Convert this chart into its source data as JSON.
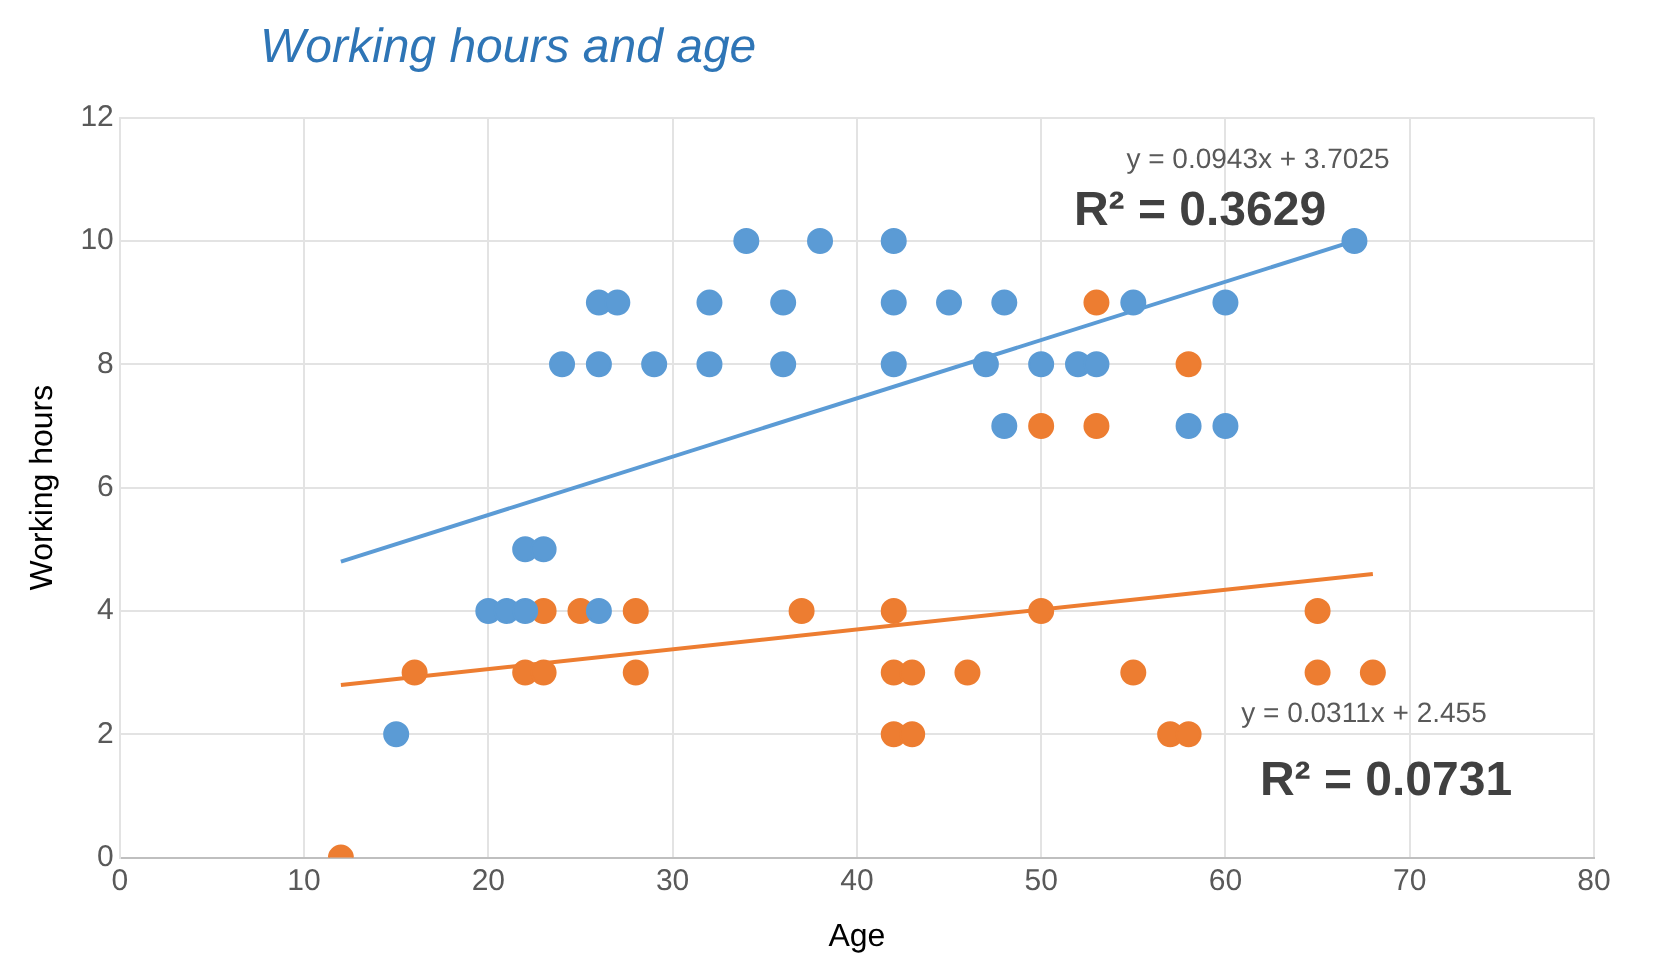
{
  "chart_data": {
    "type": "scatter",
    "title": "Working hours and age",
    "xlabel": "Age",
    "ylabel": "Working hours",
    "xlim": [
      0,
      80
    ],
    "xticks": [
      0,
      10,
      20,
      30,
      40,
      50,
      60,
      70,
      80
    ],
    "ylim": [
      0,
      12
    ],
    "yticks": [
      0,
      2,
      4,
      6,
      8,
      10,
      12
    ],
    "grid": true,
    "legend": false,
    "marker": "circle",
    "series": [
      {
        "color": "#5b9bd5",
        "x": [
          15,
          20,
          21,
          22,
          22,
          23,
          26,
          24,
          26,
          29,
          32,
          36,
          26,
          27,
          32,
          36,
          34,
          38,
          42,
          42,
          45,
          48,
          55,
          60,
          42,
          47,
          50,
          52,
          53,
          48,
          58,
          60,
          67
        ],
        "values": [
          2,
          4,
          4,
          4,
          5,
          5,
          4,
          8,
          8,
          8,
          8,
          8,
          9,
          9,
          9,
          9,
          10,
          10,
          10,
          9,
          9,
          9,
          9,
          9,
          8,
          8,
          8,
          8,
          8,
          7,
          7,
          7,
          10
        ]
      },
      {
        "color": "#ed7d31",
        "x": [
          12,
          16,
          22,
          23,
          28,
          23,
          25,
          28,
          37,
          42,
          50,
          65,
          42,
          43,
          46,
          55,
          65,
          68,
          42,
          43,
          57,
          58,
          53,
          58,
          50,
          53
        ],
        "values": [
          0,
          3,
          3,
          3,
          3,
          4,
          4,
          4,
          4,
          4,
          4,
          4,
          3,
          3,
          3,
          3,
          3,
          3,
          2,
          2,
          2,
          2,
          9,
          8,
          7,
          7
        ]
      },
      {
        "type": "line",
        "color": "#5b9bd5",
        "x": [
          12,
          67
        ],
        "values": [
          4.8,
          10.0
        ],
        "marker": "none"
      },
      {
        "type": "line",
        "color": "#ed7d31",
        "x": [
          12,
          68
        ],
        "values": [
          2.8,
          4.6
        ],
        "marker": "none"
      }
    ],
    "annotations": [
      "y = 0.0943x + 3.7025",
      "R² = 0.3629",
      "y = 0.0311x + 2.455",
      "R² = 0.0731"
    ]
  }
}
